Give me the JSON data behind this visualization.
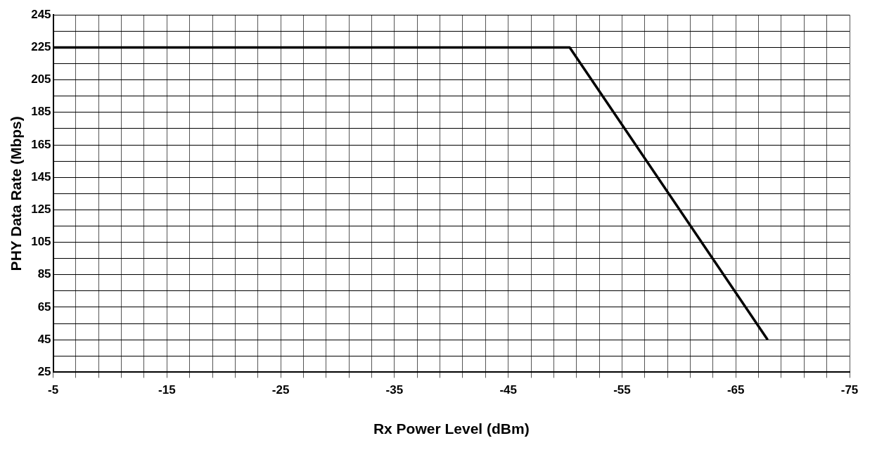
{
  "chart_data": {
    "type": "line",
    "xlabel": "Rx Power Level (dBm)",
    "ylabel": "PHY Data Rate (Mbps)",
    "x": [
      -5,
      -50.4,
      -67.8
    ],
    "series": [
      {
        "color": "#000000",
        "values": [
          225,
          225,
          45
        ]
      }
    ],
    "xlim": [
      -5,
      -75
    ],
    "xticks": [
      -5,
      {
        "value": -7,
        "label": null
      },
      {
        "value": -9,
        "label": null
      },
      {
        "value": -11,
        "label": null
      },
      {
        "value": -13,
        "label": null
      },
      -15,
      {
        "value": -17,
        "label": null
      },
      {
        "value": -19,
        "label": null
      },
      {
        "value": -21,
        "label": null
      },
      {
        "value": -23,
        "label": null
      },
      -25,
      {
        "value": -27,
        "label": null
      },
      {
        "value": -29,
        "label": null
      },
      {
        "value": -31,
        "label": null
      },
      {
        "value": -33,
        "label": null
      },
      -35,
      {
        "value": -37,
        "label": null
      },
      {
        "value": -39,
        "label": null
      },
      {
        "value": -41,
        "label": null
      },
      {
        "value": -43,
        "label": null
      },
      -45,
      {
        "value": -47,
        "label": null
      },
      {
        "value": -49,
        "label": null
      },
      {
        "value": -51,
        "label": null
      },
      {
        "value": -53,
        "label": null
      },
      -55,
      {
        "value": -57,
        "label": null
      },
      {
        "value": -59,
        "label": null
      },
      {
        "value": -61,
        "label": null
      },
      {
        "value": -63,
        "label": null
      },
      -65,
      {
        "value": -67,
        "label": null
      },
      {
        "value": -69,
        "label": null
      },
      {
        "value": -71,
        "label": null
      },
      {
        "value": -73,
        "label": null
      },
      -75
    ],
    "ylim": [
      25,
      245
    ],
    "yticks": [
      25,
      {
        "value": 35,
        "label": null
      },
      45,
      {
        "value": 55,
        "label": null
      },
      65,
      {
        "value": 75,
        "label": null
      },
      85,
      {
        "value": 95,
        "label": null
      },
      105,
      {
        "value": 115,
        "label": null
      },
      125,
      {
        "value": 135,
        "label": null
      },
      145,
      {
        "value": 155,
        "label": null
      },
      165,
      {
        "value": 175,
        "label": null
      },
      185,
      {
        "value": 195,
        "label": null
      },
      205,
      {
        "value": 215,
        "label": null
      },
      225,
      {
        "value": 235,
        "label": null
      },
      245
    ],
    "grid": true,
    "legend": false,
    "marker": "none",
    "line_style": "solid"
  }
}
